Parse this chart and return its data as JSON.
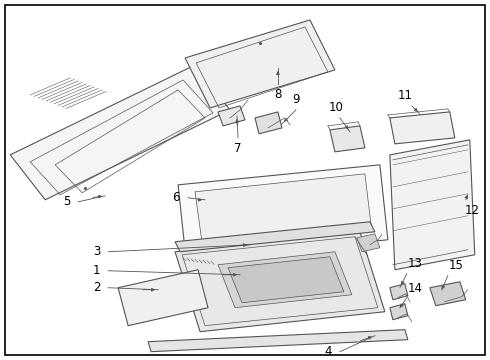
{
  "background_color": "#ffffff",
  "line_color": "#555555",
  "label_color": "#000000",
  "fig_width": 4.9,
  "fig_height": 3.6,
  "dpi": 100,
  "font_size": 8.5
}
